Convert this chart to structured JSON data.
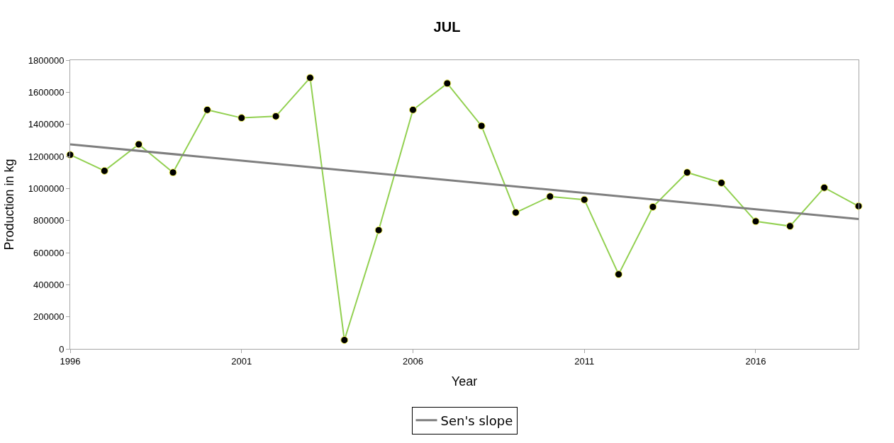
{
  "chart_data": {
    "type": "line",
    "title": "JUL",
    "xlabel": "Year",
    "ylabel": "Production in kg",
    "x": [
      1996,
      1997,
      1998,
      1999,
      2000,
      2001,
      2002,
      2003,
      2004,
      2005,
      2006,
      2007,
      2008,
      2009,
      2010,
      2011,
      2012,
      2013,
      2014,
      2015,
      2016,
      2017,
      2018,
      2019
    ],
    "series": [
      {
        "color": "#92d050",
        "marker": "circle",
        "values": [
          1210000,
          1110000,
          1275000,
          1100000,
          1490000,
          1440000,
          1450000,
          1690000,
          55000,
          740000,
          1490000,
          1655000,
          1390000,
          850000,
          950000,
          930000,
          465000,
          885000,
          1100000,
          1035000,
          795000,
          765000,
          1005000,
          890000
        ]
      },
      {
        "name": "Sen's slope",
        "color": "#7f7f7f",
        "marker": "none",
        "x": [
          1996,
          2019
        ],
        "values": [
          1275000,
          810000
        ]
      }
    ],
    "xlim": [
      1996,
      2019
    ],
    "xticks": [
      1996,
      2001,
      2006,
      2011,
      2016
    ],
    "ylim": [
      0,
      1800000
    ],
    "yticks": [
      0,
      200000,
      400000,
      600000,
      800000,
      1000000,
      1200000,
      1400000,
      1600000,
      1800000
    ],
    "legend": "bottom"
  }
}
